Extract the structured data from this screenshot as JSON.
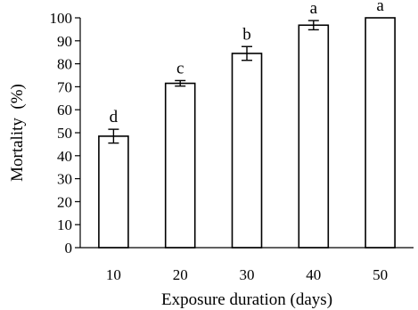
{
  "chart_data": {
    "type": "bar",
    "title": "",
    "xlabel": "Exposure duration (days)",
    "ylabel": "Mortality  (%)",
    "categories": [
      "10",
      "20",
      "30",
      "40",
      "50"
    ],
    "values": [
      48.5,
      71.5,
      84.5,
      96.8,
      100
    ],
    "errors": [
      3.0,
      1.2,
      3.0,
      2.0,
      0
    ],
    "significance_labels": [
      "d",
      "c",
      "b",
      "a",
      "a"
    ],
    "ylim": [
      0,
      100
    ],
    "yticks": [
      "0",
      "10",
      "20",
      "30",
      "40",
      "50",
      "60",
      "70",
      "80",
      "90",
      "100"
    ],
    "bar_fill": "#ffffff",
    "bar_stroke": "#000000",
    "grid": false
  }
}
